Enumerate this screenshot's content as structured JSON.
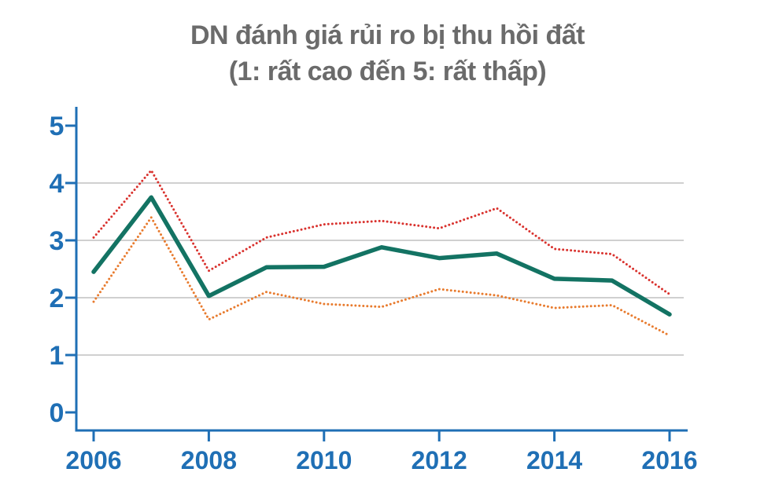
{
  "chart_data": {
    "type": "line",
    "title_lines": [
      "DN đánh giá rủi ro bị thu hồi đất",
      "(1: rất cao đến 5: rất thấp)"
    ],
    "xlabel": "",
    "ylabel": "",
    "x": [
      2006,
      2007,
      2008,
      2009,
      2010,
      2011,
      2012,
      2013,
      2014,
      2015,
      2016
    ],
    "x_tick_labels": [
      "2006",
      "2008",
      "2010",
      "2012",
      "2014",
      "2016"
    ],
    "y_tick_labels": [
      "0",
      "1",
      "2",
      "3",
      "4",
      "5"
    ],
    "xlim": [
      2006,
      2016
    ],
    "ylim": [
      0,
      5
    ],
    "grid": "horizontal",
    "series": [
      {
        "values": [
          3.05,
          4.22,
          2.47,
          3.05,
          3.28,
          3.34,
          3.21,
          3.56,
          2.85,
          2.76,
          2.06
        ],
        "color": "#d9322e",
        "style": "dotted"
      },
      {
        "values": [
          2.45,
          3.75,
          2.03,
          2.53,
          2.54,
          2.88,
          2.69,
          2.77,
          2.33,
          2.3,
          1.71
        ],
        "color": "#137363",
        "style": "solid"
      },
      {
        "values": [
          1.93,
          3.4,
          1.62,
          2.1,
          1.89,
          1.84,
          2.15,
          2.04,
          1.82,
          1.87,
          1.34
        ],
        "color": "#e87b2e",
        "style": "dotted"
      }
    ],
    "colors": {
      "axis": "#1f6fb5",
      "grid": "#b5b5b5",
      "title": "#6b6b6b"
    }
  }
}
